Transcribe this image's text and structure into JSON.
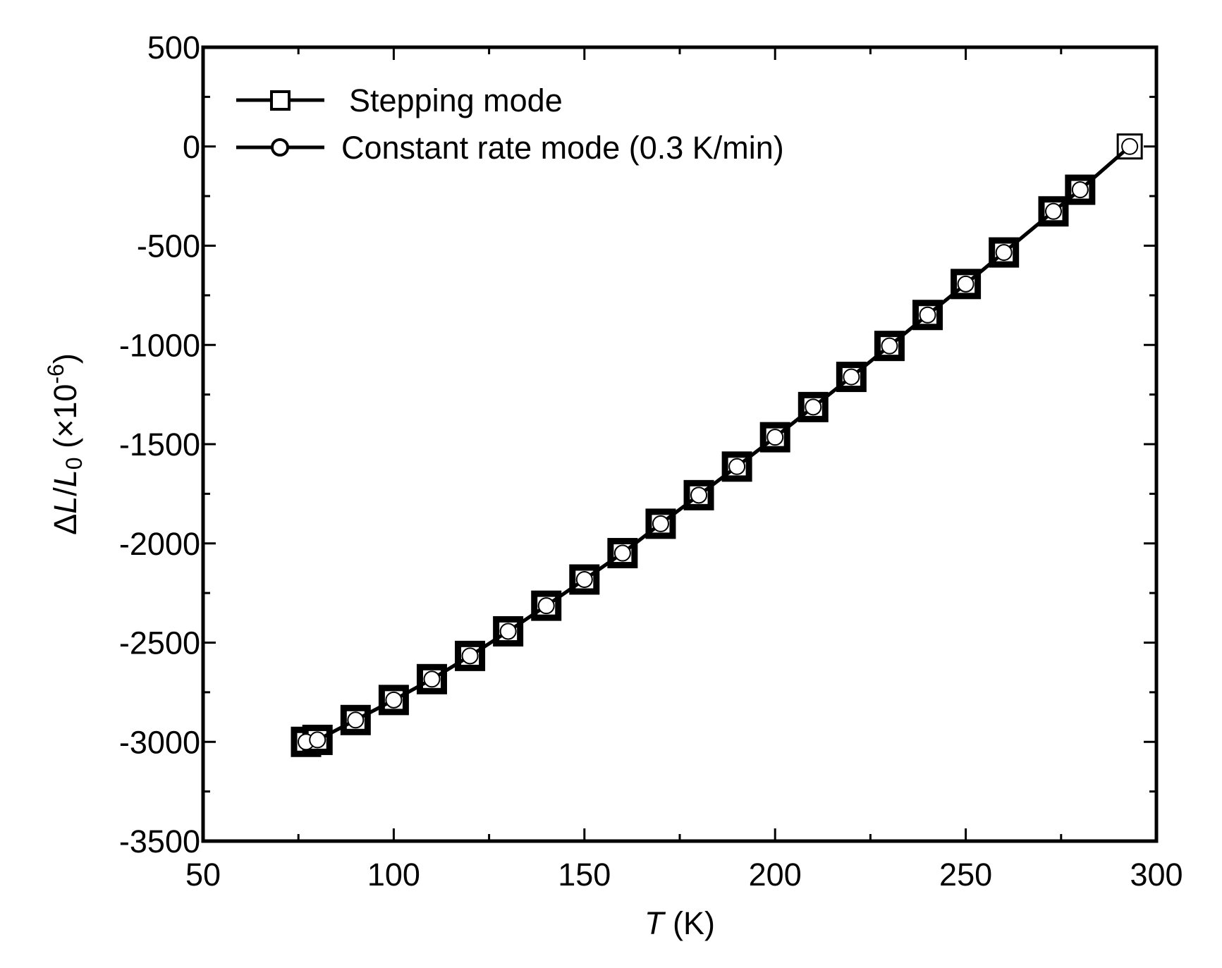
{
  "chart_data": {
    "type": "line",
    "title": "",
    "xlabel": "T (K)",
    "xlabel_var": "T",
    "xlabel_unit": " (K)",
    "ylabel": "ΔL/L0 (×10-6)",
    "ylabel_parts": {
      "delta": "Δ",
      "L": "L",
      "slash": "/",
      "L0": "L",
      "sub": "0",
      "unit_open": " (×10",
      "sup": "-6",
      "unit_close": ")"
    },
    "xlim": [
      50,
      300
    ],
    "ylim": [
      -3500,
      500
    ],
    "xticks": [
      50,
      100,
      150,
      200,
      250,
      300
    ],
    "yticks": [
      500,
      0,
      -500,
      -1000,
      -1500,
      -2000,
      -2500,
      -3000,
      -3500
    ],
    "grid": false,
    "legend_position": "top-left",
    "series": [
      {
        "name": "Stepping mode",
        "marker": "square",
        "x": [
          77,
          80,
          90,
          100,
          110,
          120,
          130,
          140,
          150,
          160,
          170,
          180,
          190,
          200,
          210,
          220,
          230,
          240,
          250,
          260,
          273,
          280,
          293
        ],
        "y": [
          -3000,
          -2990,
          -2890,
          -2789,
          -2684,
          -2567,
          -2443,
          -2314,
          -2182,
          -2049,
          -1901,
          -1757,
          -1613,
          -1465,
          -1313,
          -1161,
          -1005,
          -849,
          -693,
          -534,
          -327,
          -218,
          0
        ]
      },
      {
        "name": "Constant rate mode (0.3 K/min)",
        "marker": "circle",
        "x": [
          77,
          80,
          90,
          100,
          110,
          120,
          130,
          140,
          150,
          160,
          170,
          180,
          190,
          200,
          210,
          220,
          230,
          240,
          250,
          260,
          273,
          280,
          293
        ],
        "y": [
          -3000,
          -2990,
          -2890,
          -2789,
          -2684,
          -2567,
          -2443,
          -2314,
          -2182,
          -2049,
          -1901,
          -1757,
          -1613,
          -1465,
          -1313,
          -1161,
          -1005,
          -849,
          -693,
          -534,
          -327,
          -218,
          0
        ]
      }
    ]
  }
}
